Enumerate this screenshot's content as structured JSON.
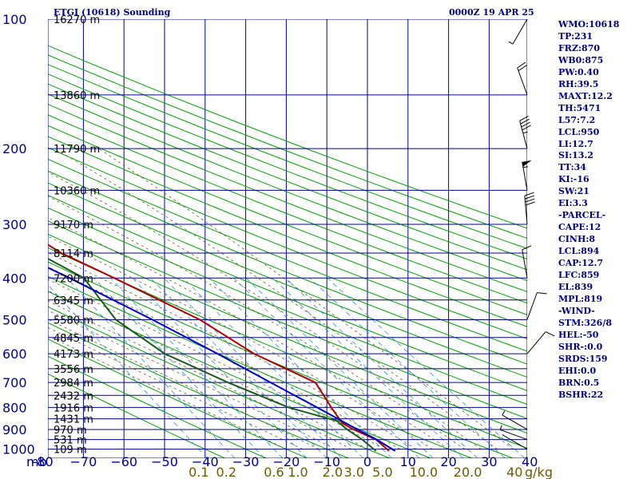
{
  "header": {
    "title": "ETGI (10618) Sounding",
    "valid_time": "0000Z 19 APR 25"
  },
  "stats": [
    "WMO:10618",
    "TP:231",
    "FRZ:870",
    "WB0:875",
    "PW:0.40",
    "RH:39.5",
    "MAXT:12.2",
    "TH:5471",
    "L57:7.2",
    "LCL:950",
    "LI:12.7",
    "SI:13.2",
    "TT:34",
    "KI:-16",
    "SW:21",
    "EI:3.3",
    "-PARCEL-",
    "CAPE:12",
    "CINH:8",
    "LCL:894",
    "CAP:12.7",
    "LFC:859",
    "EL:839",
    "MPL:819",
    "-WIND-",
    "STM:326/8",
    "HEL:-50",
    "SHR-:0.0",
    "SRDS:159",
    "EHI:0.0",
    "BRN:0.5",
    "BSHR:22"
  ],
  "colors": {
    "background": "#ffffff",
    "grid": "#00008b",
    "dry_adiabat": "#00a000",
    "moist_adiabat": "#6b5a2a",
    "mixing_ratio": "#2e8fd6",
    "temperature": "#b00000",
    "dewpoint": "#1a5a1a",
    "parcel": "#0000c0",
    "text": "#00007a",
    "mixing_label": "#6b5a00",
    "wind": "#000000"
  },
  "chart_data": {
    "type": "skew-t log-p sounding",
    "pressure_axis": {
      "unit": "mb",
      "unit_label": "mb",
      "ticks": [
        100,
        200,
        300,
        400,
        500,
        600,
        700,
        800,
        900,
        1000
      ],
      "range": [
        1050,
        100
      ],
      "log_scale": true
    },
    "temperature_axis": {
      "unit": "°C",
      "ticks": [
        -80,
        -70,
        -60,
        -50,
        -40,
        -30,
        -20,
        -10,
        0,
        10,
        20,
        30,
        40
      ],
      "tick_labels": [
        "-80",
        "−70",
        "−60",
        "−50",
        "−40",
        "−30",
        "−20",
        "−10",
        "0",
        "10",
        "20",
        "30",
        "40"
      ],
      "skewed": true
    },
    "mixing_ratio_axis": {
      "unit": "g/kg",
      "unit_label": "g/kg",
      "ticks": [
        0.1,
        0.2,
        0.6,
        1.0,
        2.0,
        3.0,
        5.0,
        10.0,
        20.0,
        40.0
      ],
      "tick_labels": [
        "0.1",
        "0.2",
        "0.6",
        "1.0",
        "2.0",
        "3.0",
        "5.0",
        "10.0",
        "20.0",
        "40"
      ]
    },
    "heights": [
      {
        "p": 100,
        "label": "16270 m"
      },
      {
        "p": 150,
        "label": "13860 m"
      },
      {
        "p": 200,
        "label": "11790 m"
      },
      {
        "p": 250,
        "label": "10360 m"
      },
      {
        "p": 300,
        "label": "9170 m"
      },
      {
        "p": 350,
        "label": "8114 m"
      },
      {
        "p": 400,
        "label": "7200 m"
      },
      {
        "p": 450,
        "label": "6345 m"
      },
      {
        "p": 500,
        "label": "5580 m"
      },
      {
        "p": 550,
        "label": "4845 m"
      },
      {
        "p": 600,
        "label": "4173 m"
      },
      {
        "p": 650,
        "label": "3556 m"
      },
      {
        "p": 700,
        "label": "2984 m"
      },
      {
        "p": 750,
        "label": "2432 m"
      },
      {
        "p": 800,
        "label": "1916 m"
      },
      {
        "p": 850,
        "label": "1431 m"
      },
      {
        "p": 900,
        "label": "970 m"
      },
      {
        "p": 950,
        "label": "531 m"
      },
      {
        "p": 1000,
        "label": "109 m"
      }
    ],
    "series": [
      {
        "name": "temperature",
        "points": [
          [
            1010,
            5.0
          ],
          [
            950,
            3.8
          ],
          [
            900,
            0.0
          ],
          [
            870,
            -1.6
          ],
          [
            800,
            -1.5
          ],
          [
            700,
            -1.0
          ],
          [
            600,
            -11.0
          ],
          [
            500,
            -18.3
          ],
          [
            400,
            -32.0
          ],
          [
            350,
            -40.6
          ],
          [
            300,
            -47.0
          ],
          [
            275,
            -51.0
          ],
          [
            250,
            -55.5
          ],
          [
            230,
            -55.8
          ],
          [
            200,
            -54.5
          ],
          [
            175,
            -54.0
          ],
          [
            150,
            -54.4
          ],
          [
            125,
            -55.0
          ],
          [
            100,
            -56.0
          ]
        ]
      },
      {
        "name": "dewpoint",
        "points": [
          [
            1010,
            1.8
          ],
          [
            950,
            0.4
          ],
          [
            900,
            -1.5
          ],
          [
            860,
            -2.5
          ],
          [
            800,
            -12.0
          ],
          [
            700,
            -22.5
          ],
          [
            600,
            -33.0
          ],
          [
            500,
            -39.0
          ],
          [
            400,
            -39.5
          ],
          [
            350,
            -46.5
          ],
          [
            300,
            -53.5
          ],
          [
            275,
            -62.5
          ],
          [
            250,
            -71.0
          ],
          [
            230,
            -79.0
          ],
          [
            200,
            -85.0
          ]
        ]
      },
      {
        "name": "parcel",
        "points": [
          [
            1010,
            6.5
          ],
          [
            950,
            4.0
          ],
          [
            900,
            1.0
          ],
          [
            800,
            -5.0
          ],
          [
            700,
            -12.0
          ],
          [
            600,
            -20.0
          ],
          [
            500,
            -30.0
          ],
          [
            400,
            -43.0
          ],
          [
            350,
            -51.5
          ],
          [
            300,
            -59.5
          ],
          [
            250,
            -71.0
          ],
          [
            200,
            -85.0
          ]
        ]
      }
    ],
    "wind_barbs": [
      {
        "p": 100,
        "dir": 210,
        "spd": 5
      },
      {
        "p": 150,
        "dir": 340,
        "spd": 20
      },
      {
        "p": 200,
        "dir": 345,
        "spd": 45
      },
      {
        "p": 250,
        "dir": 350,
        "spd": 55
      },
      {
        "p": 300,
        "dir": 355,
        "spd": 40
      },
      {
        "p": 400,
        "dir": 350,
        "spd": 10
      },
      {
        "p": 500,
        "dir": 20,
        "spd": 10
      },
      {
        "p": 600,
        "dir": 40,
        "spd": 10
      },
      {
        "p": 900,
        "dir": 300,
        "spd": 5
      },
      {
        "p": 950,
        "dir": 290,
        "spd": 5
      },
      {
        "p": 1000,
        "dir": 300,
        "spd": 0
      }
    ]
  }
}
